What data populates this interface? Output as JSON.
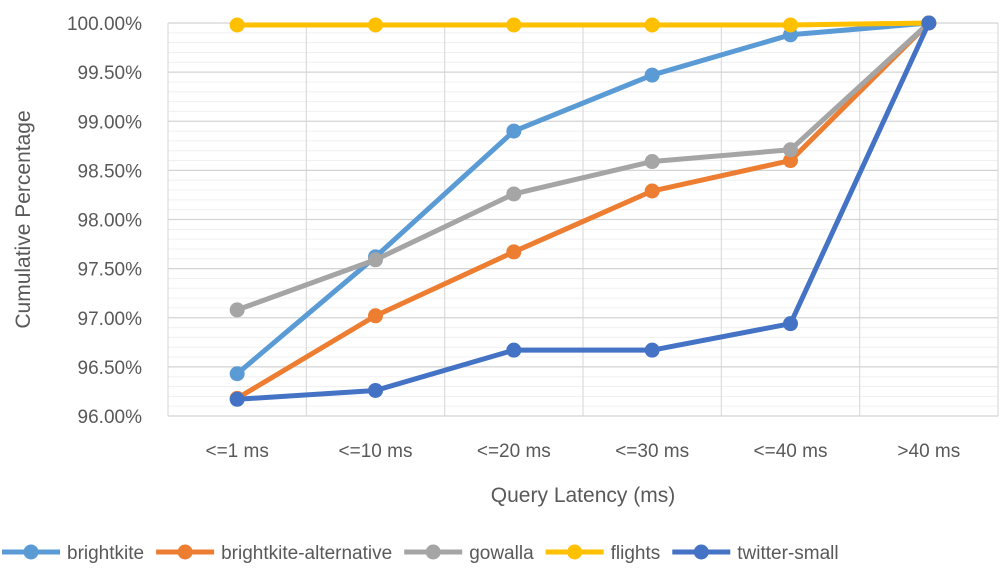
{
  "chart_data": {
    "type": "line",
    "title": "",
    "xlabel": "Query Latency (ms)",
    "ylabel": "Cumulative Percentage",
    "categories": [
      "<=1 ms",
      "<=10 ms",
      "<=20 ms",
      "<=30 ms",
      "<=40 ms",
      ">40 ms"
    ],
    "ylim": [
      96.0,
      100.0
    ],
    "yticks": [
      "96.00%",
      "96.50%",
      "97.00%",
      "97.50%",
      "98.00%",
      "98.50%",
      "99.00%",
      "99.50%",
      "100.00%"
    ],
    "grid": true,
    "legend_position": "bottom",
    "series": [
      {
        "name": "brightkite",
        "color": "#5B9BD5",
        "values": [
          96.43,
          97.62,
          98.9,
          99.47,
          99.88,
          100.0
        ]
      },
      {
        "name": "brightkite-alternative",
        "color": "#ED7D31",
        "values": [
          96.18,
          97.02,
          97.67,
          98.29,
          98.6,
          100.0
        ]
      },
      {
        "name": "gowalla",
        "color": "#A5A5A5",
        "values": [
          97.08,
          97.59,
          98.26,
          98.59,
          98.71,
          100.0
        ]
      },
      {
        "name": "flights",
        "color": "#FFC000",
        "values": [
          99.98,
          99.98,
          99.98,
          99.98,
          99.98,
          100.0
        ]
      },
      {
        "name": "twitter-small",
        "color": "#4472C4",
        "values": [
          96.17,
          96.26,
          96.67,
          96.67,
          96.94,
          100.0
        ]
      }
    ]
  }
}
